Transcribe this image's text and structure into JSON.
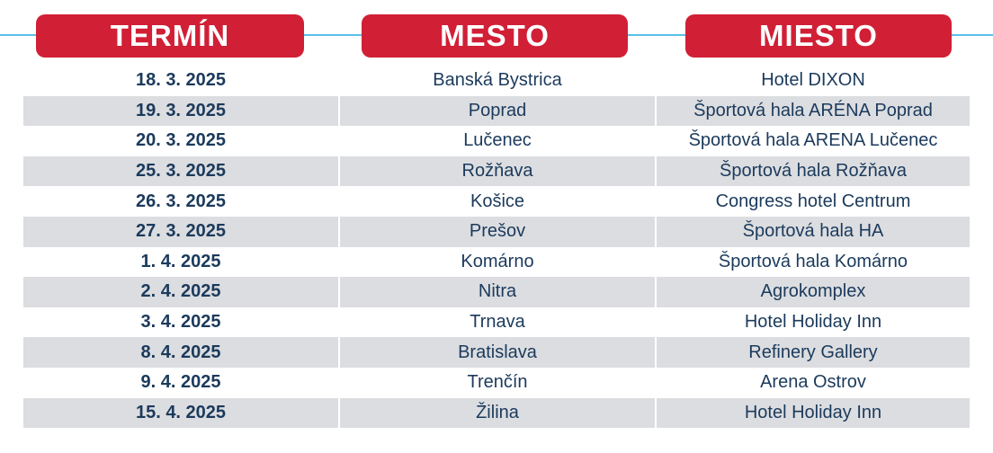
{
  "colors": {
    "header_bg": "#d11f36",
    "header_text": "#ffffff",
    "header_line": "#5bc0e8",
    "row_shade": "#dcdde0",
    "cell_text": "#1b3a5c"
  },
  "headers": {
    "termin": "TERMÍN",
    "mesto": "MESTO",
    "miesto": "MIESTO"
  },
  "rows": [
    {
      "termin": "18. 3. 2025",
      "mesto": "Banská Bystrica",
      "miesto": "Hotel DIXON"
    },
    {
      "termin": "19. 3. 2025",
      "mesto": "Poprad",
      "miesto": "Športová hala ARÉNA Poprad"
    },
    {
      "termin": "20. 3. 2025",
      "mesto": "Lučenec",
      "miesto": "Športová hala ARENA Lučenec"
    },
    {
      "termin": "25. 3. 2025",
      "mesto": "Rožňava",
      "miesto": "Športová hala Rožňava"
    },
    {
      "termin": "26. 3. 2025",
      "mesto": "Košice",
      "miesto": "Congress hotel Centrum"
    },
    {
      "termin": "27. 3. 2025",
      "mesto": "Prešov",
      "miesto": "Športová hala HA"
    },
    {
      "termin": "1. 4. 2025",
      "mesto": "Komárno",
      "miesto": "Športová hala Komárno"
    },
    {
      "termin": "2. 4. 2025",
      "mesto": "Nitra",
      "miesto": "Agrokomplex"
    },
    {
      "termin": "3. 4. 2025",
      "mesto": "Trnava",
      "miesto": "Hotel Holiday Inn"
    },
    {
      "termin": "8. 4. 2025",
      "mesto": "Bratislava",
      "miesto": "Refinery Gallery"
    },
    {
      "termin": "9. 4. 2025",
      "mesto": "Trenčín",
      "miesto": "Arena Ostrov"
    },
    {
      "termin": "15. 4. 2025",
      "mesto": "Žilina",
      "miesto": "Hotel Holiday Inn"
    }
  ]
}
